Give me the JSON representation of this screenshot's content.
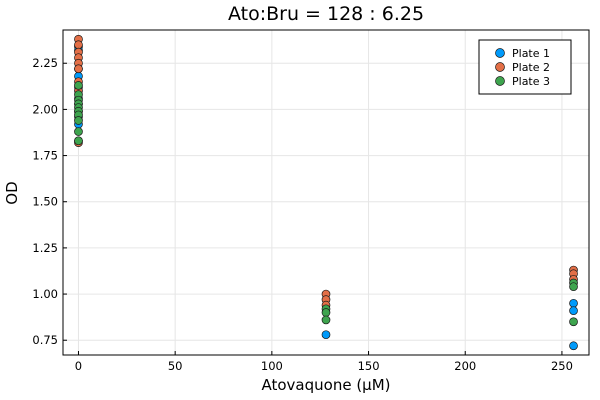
{
  "chart_data": {
    "type": "scatter",
    "title": "Ato:Bru = 128 : 6.25",
    "xlabel": "Atovaquone (µM)",
    "ylabel": "OD",
    "xlim": [
      -8,
      264
    ],
    "ylim": [
      0.67,
      2.43
    ],
    "xticks": [
      0,
      50,
      100,
      150,
      200,
      250
    ],
    "yticks": [
      0.75,
      1.0,
      1.25,
      1.5,
      1.75,
      2.0,
      2.25
    ],
    "ytick_labels": [
      "0.75",
      "1.00",
      "1.25",
      "1.50",
      "1.75",
      "2.00",
      "2.25"
    ],
    "grid": true,
    "legend_position": "top-right",
    "series": [
      {
        "name": "Plate 1",
        "color": "#009AFA",
        "points": [
          [
            0,
            2.34
          ],
          [
            0,
            2.32
          ],
          [
            0,
            2.22
          ],
          [
            0,
            2.18
          ],
          [
            0,
            2.12
          ],
          [
            0,
            2.06
          ],
          [
            0,
            2.03
          ],
          [
            0,
            1.99
          ],
          [
            0,
            1.96
          ],
          [
            0,
            1.92
          ],
          [
            128,
            0.78
          ],
          [
            256,
            0.95
          ],
          [
            256,
            0.91
          ],
          [
            256,
            0.72
          ]
        ]
      },
      {
        "name": "Plate 2",
        "color": "#E36F47",
        "points": [
          [
            0,
            2.38
          ],
          [
            0,
            2.35
          ],
          [
            0,
            2.31
          ],
          [
            0,
            2.28
          ],
          [
            0,
            2.25
          ],
          [
            0,
            2.22
          ],
          [
            0,
            2.15
          ],
          [
            0,
            2.1
          ],
          [
            0,
            1.83
          ],
          [
            0,
            1.82
          ],
          [
            128,
            1.0
          ],
          [
            128,
            0.97
          ],
          [
            128,
            0.94
          ],
          [
            256,
            1.13
          ],
          [
            256,
            1.11
          ],
          [
            256,
            1.08
          ]
        ]
      },
      {
        "name": "Plate 3",
        "color": "#3EA44E",
        "points": [
          [
            0,
            2.13
          ],
          [
            0,
            2.08
          ],
          [
            0,
            2.05
          ],
          [
            0,
            2.03
          ],
          [
            0,
            2.01
          ],
          [
            0,
            1.99
          ],
          [
            0,
            1.97
          ],
          [
            0,
            1.94
          ],
          [
            0,
            1.88
          ],
          [
            0,
            1.83
          ],
          [
            128,
            0.92
          ],
          [
            128,
            0.9
          ],
          [
            128,
            0.86
          ],
          [
            256,
            1.06
          ],
          [
            256,
            1.04
          ],
          [
            256,
            0.85
          ]
        ]
      }
    ]
  }
}
